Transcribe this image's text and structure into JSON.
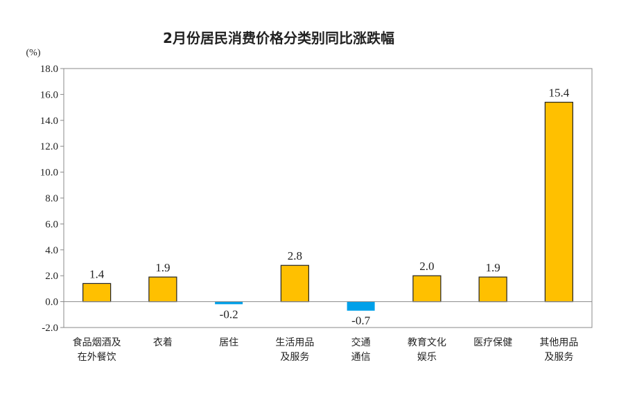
{
  "chart_data": {
    "type": "bar",
    "title": "2月份居民消费价格分类别同比涨跌幅",
    "unit": "(%)",
    "ylim": [
      -2.0,
      18.0
    ],
    "yticks": [
      -2.0,
      0.0,
      2.0,
      4.0,
      6.0,
      8.0,
      10.0,
      12.0,
      14.0,
      16.0,
      18.0
    ],
    "ytick_labels": [
      "-2.0",
      "0.0",
      "2.0",
      "4.0",
      "6.0",
      "8.0",
      "10.0",
      "12.0",
      "14.0",
      "16.0",
      "18.0"
    ],
    "categories": [
      [
        "食品烟酒及",
        "在外餐饮"
      ],
      [
        "衣着"
      ],
      [
        "居住"
      ],
      [
        "生活用品",
        "及服务"
      ],
      [
        "交通",
        "通信"
      ],
      [
        "教育文化",
        "娱乐"
      ],
      [
        "医疗保健"
      ],
      [
        "其他用品",
        "及服务"
      ]
    ],
    "values": [
      1.4,
      1.9,
      -0.2,
      2.8,
      -0.7,
      2.0,
      1.9,
      15.4
    ],
    "value_labels": [
      "1.4",
      "1.9",
      "-0.2",
      "2.8",
      "-0.7",
      "2.0",
      "1.9",
      "15.4"
    ],
    "colors": {
      "positive": "#FFC000",
      "negative": "#00A0E9",
      "outline": "#222222"
    },
    "grid": false,
    "legend": "none"
  }
}
